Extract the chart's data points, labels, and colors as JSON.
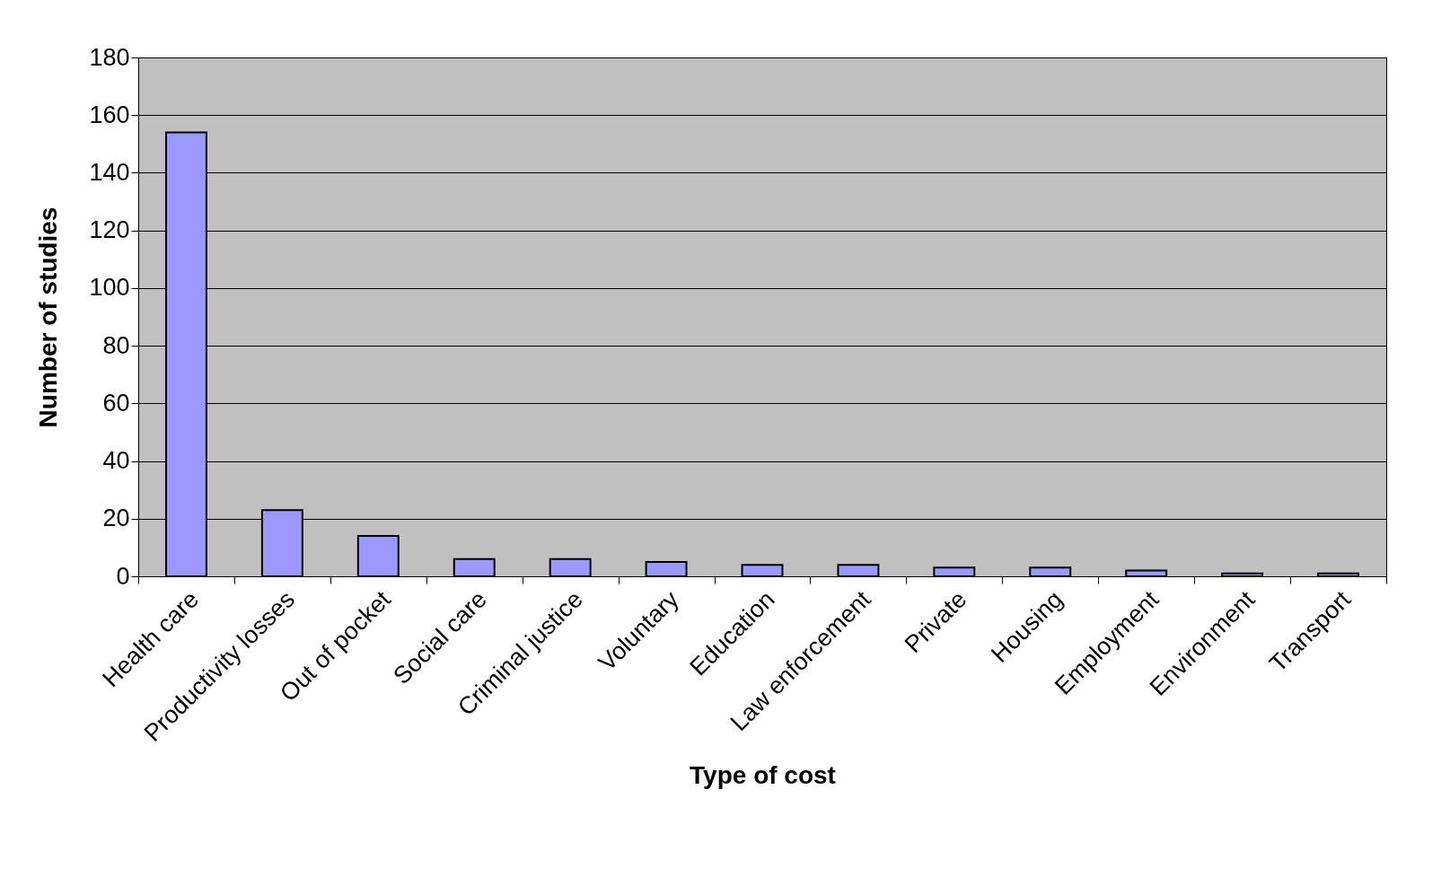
{
  "chart_data": {
    "type": "bar",
    "xlabel": "Type of cost",
    "ylabel": "Number of studies",
    "categories": [
      "Health care",
      "Productivity losses",
      "Out of pocket",
      "Social care",
      "Criminal justice",
      "Voluntary",
      "Education",
      "Law enforcement",
      "Private",
      "Housing",
      "Employment",
      "Environment",
      "Transport"
    ],
    "values": [
      154,
      23,
      14,
      6,
      6,
      5,
      4,
      4,
      3,
      3,
      2,
      1,
      1
    ],
    "color": "#9999ff",
    "ylim": [
      0,
      180
    ],
    "yticks": [
      0,
      20,
      40,
      60,
      80,
      100,
      120,
      140,
      160,
      180
    ],
    "grid": "y"
  }
}
